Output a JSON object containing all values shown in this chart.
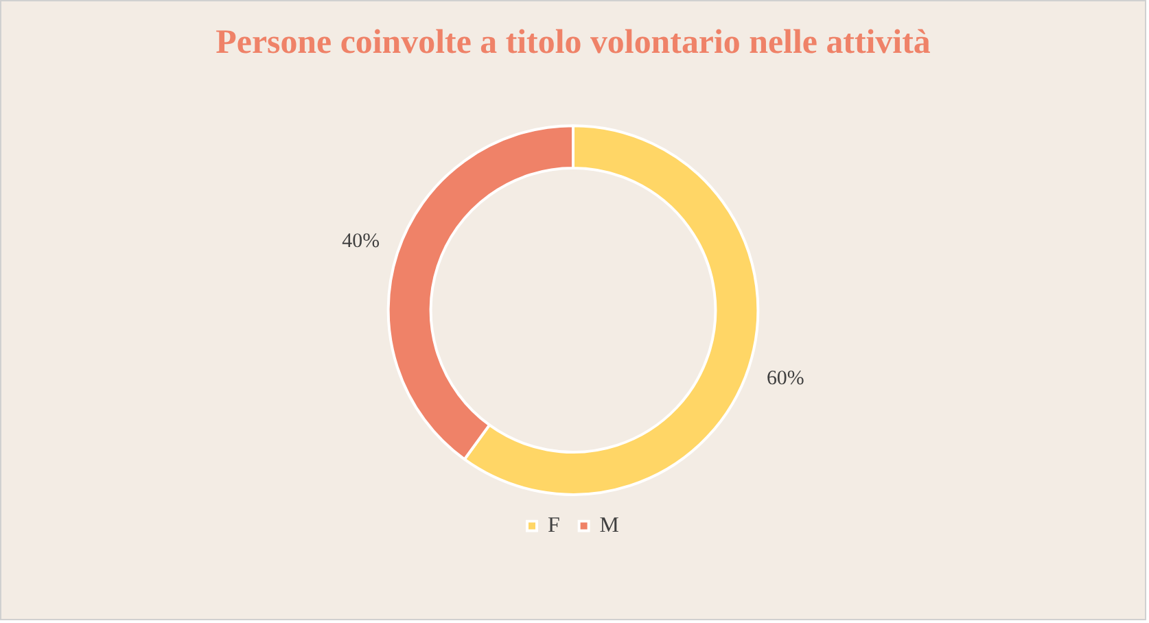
{
  "chart_data": {
    "type": "donut",
    "title": "Persone coinvolte a titolo volontario nelle attività",
    "categories": [
      "F",
      "M"
    ],
    "values": [
      60,
      40
    ],
    "colors": [
      "#ffd666",
      "#ef8268"
    ],
    "value_labels": [
      "60%",
      "40%"
    ],
    "legend": "bottom"
  }
}
